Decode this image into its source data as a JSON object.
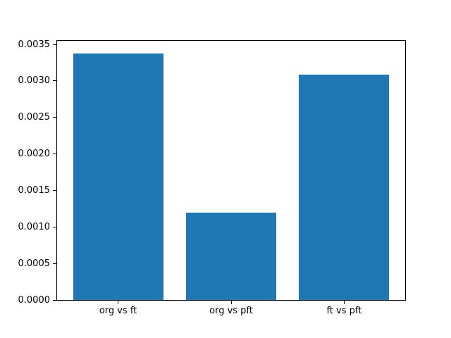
{
  "chart_data": {
    "type": "bar",
    "categories": [
      "org vs ft",
      "org vs pft",
      "ft vs pft"
    ],
    "values": [
      0.00338,
      0.0012,
      0.00309
    ],
    "title": "",
    "xlabel": "",
    "ylabel": "",
    "ylim": [
      0,
      0.003549
    ],
    "xlim": [
      -0.54,
      2.54
    ],
    "yticks": [
      0.0,
      0.0005,
      0.001,
      0.0015,
      0.002,
      0.0025,
      0.003,
      0.0035
    ],
    "ytick_labels": [
      "0.0000",
      "0.0005",
      "0.0010",
      "0.0015",
      "0.0020",
      "0.0025",
      "0.0030",
      "0.0035"
    ],
    "bar_width": 0.8,
    "bar_color": "#1f77b4",
    "spine_color": "#000000",
    "background_color": "#ffffff",
    "grid": false,
    "legend": "none"
  }
}
